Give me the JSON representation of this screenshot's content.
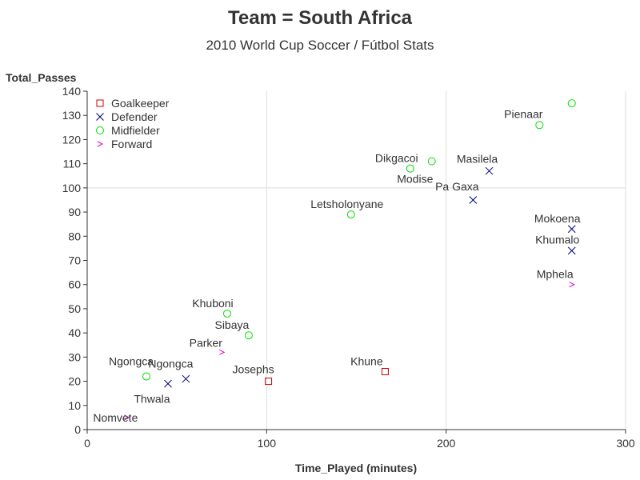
{
  "title": "Team = South Africa",
  "subtitle": "2010 World Cup Soccer / Fútbol Stats",
  "chart_data": {
    "type": "scatter",
    "xlabel": "Time_Played (minutes)",
    "ylabel": "Total_Passes",
    "xlim": [
      0,
      300
    ],
    "ylim": [
      0,
      140
    ],
    "xticks": [
      0,
      100,
      200,
      300
    ],
    "yticks": [
      0,
      10,
      20,
      30,
      40,
      50,
      60,
      70,
      80,
      90,
      100,
      110,
      120,
      130,
      140
    ],
    "grid": {
      "x": [
        100,
        200,
        300
      ],
      "y": [
        100
      ]
    },
    "legend_position": "top-left",
    "series": [
      {
        "name": "Goalkeeper",
        "marker": "square",
        "color": "#cc0000",
        "points": [
          {
            "label": "Josephs",
            "x": 101,
            "y": 20
          },
          {
            "label": "Khune",
            "x": 166,
            "y": 24
          }
        ]
      },
      {
        "name": "Defender",
        "marker": "x",
        "color": "#000080",
        "points": [
          {
            "label": "Thwala",
            "x": 45,
            "y": 19
          },
          {
            "label": "Ngongca",
            "x": 55,
            "y": 21
          },
          {
            "label": "Pa Gaxa",
            "x": 215,
            "y": 95
          },
          {
            "label": "Masilela",
            "x": 224,
            "y": 107
          },
          {
            "label": "Mokoena",
            "x": 270,
            "y": 83
          },
          {
            "label": "Khumalo",
            "x": 270,
            "y": 74
          }
        ]
      },
      {
        "name": "Midfielder",
        "marker": "circle",
        "color": "#00dd00",
        "points": [
          {
            "label": "Ngongca",
            "x": 33,
            "y": 22
          },
          {
            "label": "Khuboni",
            "x": 78,
            "y": 48
          },
          {
            "label": "Sibaya",
            "x": 90,
            "y": 39
          },
          {
            "label": "Letsholonyane",
            "x": 147,
            "y": 89
          },
          {
            "label": "Modise",
            "x": 180,
            "y": 108
          },
          {
            "label": "Dikgacoi",
            "x": 192,
            "y": 111
          },
          {
            "label": "Pienaar",
            "x": 252,
            "y": 126
          },
          {
            "label": "",
            "x": 270,
            "y": 135
          }
        ]
      },
      {
        "name": "Forward",
        "marker": "chevron",
        "color": "#dd00dd",
        "points": [
          {
            "label": "Nomvete",
            "x": 22,
            "y": 5
          },
          {
            "label": "Parker",
            "x": 75,
            "y": 32
          },
          {
            "label": "Mphela",
            "x": 270,
            "y": 60
          }
        ]
      }
    ]
  }
}
